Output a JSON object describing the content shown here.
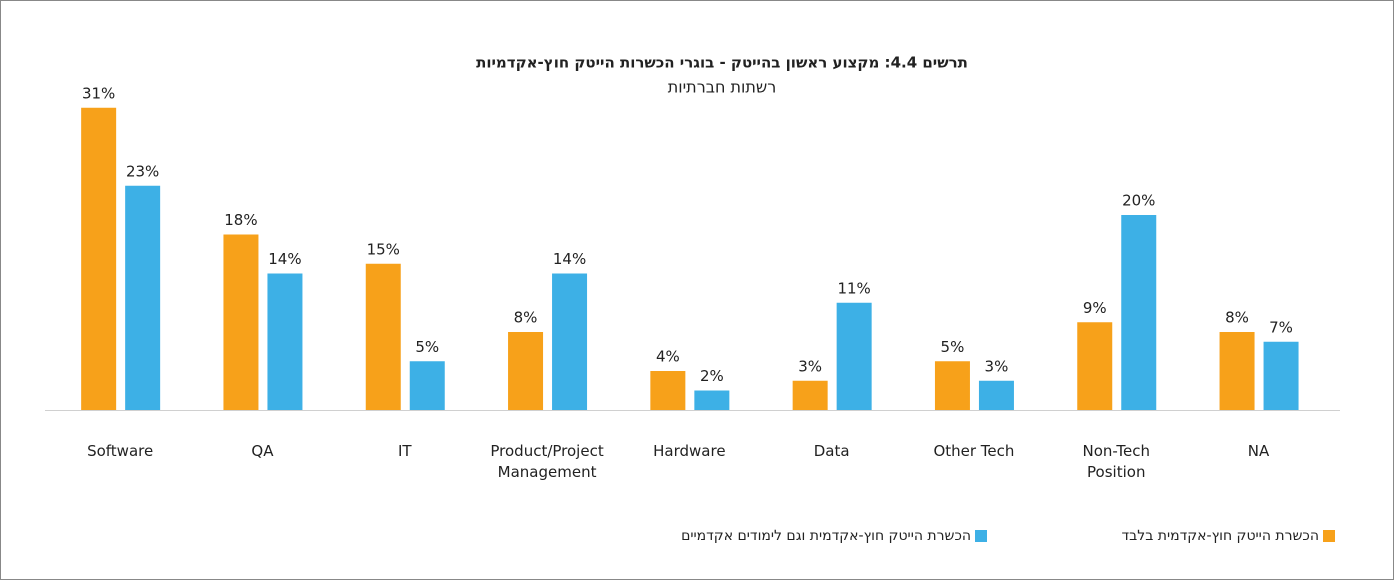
{
  "chart_data": {
    "type": "bar",
    "title": "תרשים 4.4: מקצוע ראשון בהייטק - בוגרי הכשרות הייטק חוץ-אקדמיות",
    "subtitle": "רשתות חברתיות",
    "categories": [
      "Software",
      "QA",
      "IT",
      "Product/Project Management",
      "Hardware",
      "Data",
      "Other Tech",
      "Non-Tech Position",
      "NA"
    ],
    "series": [
      {
        "name": "הכשרת הייטק חוץ-אקדמית בלבד",
        "color": "#f7a11a",
        "values": [
          31,
          18,
          15,
          8,
          4,
          3,
          5,
          9,
          8
        ],
        "value_labels": [
          "31%",
          "18%",
          "15%",
          "8%",
          "4%",
          "3%",
          "5%",
          "9%",
          "8%"
        ]
      },
      {
        "name": "הכשרת הייטק חוץ-אקדמית וגם לימודים אקדמיים",
        "color": "#3db0e6",
        "values": [
          23,
          14,
          5,
          14,
          2,
          11,
          3,
          20,
          7
        ],
        "value_labels": [
          "23%",
          "14%",
          "5%",
          "14%",
          "2%",
          "11%",
          "3%",
          "20%",
          "7%"
        ]
      }
    ]
  }
}
